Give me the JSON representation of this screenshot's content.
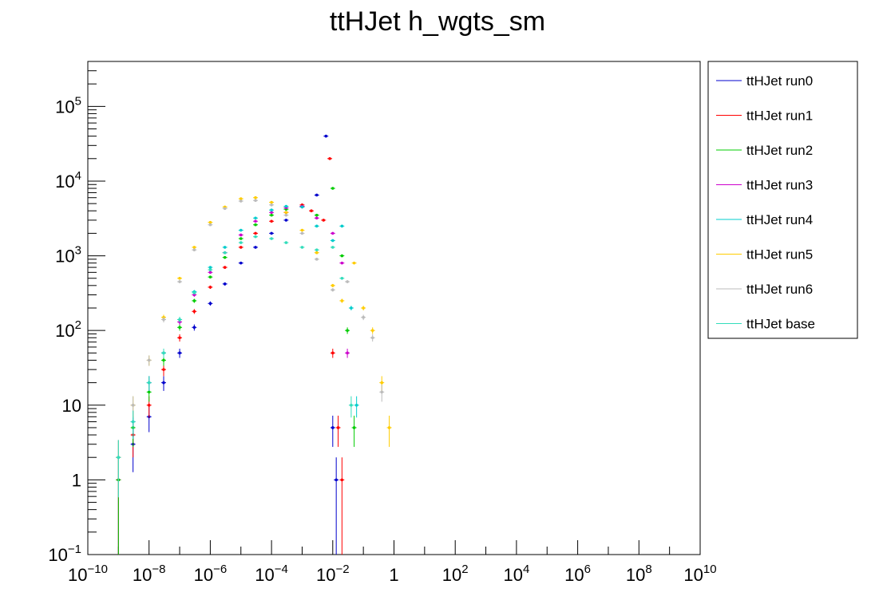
{
  "chart_data": {
    "type": "scatter",
    "title": "ttHJet h_wgts_sm",
    "xlabel": "",
    "ylabel": "",
    "x_scale": "log",
    "y_scale": "log",
    "xlim": [
      1e-10,
      10000000000.0
    ],
    "ylim": [
      0.1,
      400000
    ],
    "grid": false,
    "legend_position": "right",
    "x_tick_labels": [
      {
        "value": 1e-10,
        "base": "10",
        "exp": "−10"
      },
      {
        "value": 1e-08,
        "base": "10",
        "exp": "−8"
      },
      {
        "value": 1e-06,
        "base": "10",
        "exp": "−6"
      },
      {
        "value": 0.0001,
        "base": "10",
        "exp": "−4"
      },
      {
        "value": 0.01,
        "base": "10",
        "exp": "−2"
      },
      {
        "value": 1,
        "base": "1",
        "exp": ""
      },
      {
        "value": 100.0,
        "base": "10",
        "exp": "2"
      },
      {
        "value": 10000.0,
        "base": "10",
        "exp": "4"
      },
      {
        "value": 1000000.0,
        "base": "10",
        "exp": "6"
      },
      {
        "value": 100000000.0,
        "base": "10",
        "exp": "8"
      },
      {
        "value": 10000000000.0,
        "base": "10",
        "exp": "10"
      }
    ],
    "y_tick_labels": [
      {
        "value": 0.1,
        "base": "10",
        "exp": "−1"
      },
      {
        "value": 1,
        "base": "1",
        "exp": ""
      },
      {
        "value": 10,
        "base": "10",
        "exp": ""
      },
      {
        "value": 100,
        "base": "10",
        "exp": "2"
      },
      {
        "value": 1000,
        "base": "10",
        "exp": "3"
      },
      {
        "value": 10000,
        "base": "10",
        "exp": "4"
      },
      {
        "value": 100000,
        "base": "10",
        "exp": "5"
      }
    ],
    "series": [
      {
        "name": "ttHJet run0",
        "color": "#0000cc",
        "x": [
          1e-09,
          3e-09,
          1e-08,
          3e-08,
          1e-07,
          3e-07,
          1e-06,
          3e-06,
          1e-05,
          3e-05,
          0.0001,
          0.0003,
          0.001,
          0.003,
          0.006,
          0.01,
          0.013
        ],
        "y": [
          1,
          3,
          7,
          20,
          50,
          110,
          230,
          420,
          800,
          1300,
          2000,
          3000,
          4500,
          6500,
          40000,
          5,
          1
        ]
      },
      {
        "name": "ttHJet run1",
        "color": "#ff0000",
        "x": [
          1e-09,
          3e-09,
          1e-08,
          3e-08,
          1e-07,
          3e-07,
          1e-06,
          3e-06,
          1e-05,
          3e-05,
          0.0001,
          0.0003,
          0.001,
          0.002,
          0.005,
          0.008,
          0.01,
          0.015,
          0.02
        ],
        "y": [
          1,
          4,
          10,
          30,
          80,
          180,
          380,
          700,
          1300,
          2000,
          2900,
          3800,
          4800,
          4000,
          3000,
          20000,
          50,
          5,
          1
        ]
      },
      {
        "name": "ttHJet run2",
        "color": "#00cc00",
        "x": [
          1e-09,
          3e-09,
          1e-08,
          3e-08,
          1e-07,
          3e-07,
          1e-06,
          3e-06,
          1e-05,
          3e-05,
          0.0001,
          0.0003,
          0.001,
          0.003,
          0.01,
          0.02,
          0.03,
          0.05
        ],
        "y": [
          1,
          5,
          15,
          40,
          110,
          250,
          520,
          950,
          1700,
          2600,
          3500,
          4200,
          4600,
          3500,
          8000,
          1000,
          100,
          5
        ]
      },
      {
        "name": "ttHJet run3",
        "color": "#cc00cc",
        "x": [
          1e-09,
          3e-09,
          1e-08,
          3e-08,
          1e-07,
          3e-07,
          1e-06,
          3e-06,
          1e-05,
          3e-05,
          0.0001,
          0.0003,
          0.001,
          0.003,
          0.01,
          0.02,
          0.03
        ],
        "y": [
          2,
          6,
          20,
          50,
          130,
          300,
          600,
          1100,
          1900,
          2900,
          3800,
          4400,
          4600,
          3200,
          2000,
          800,
          50
        ]
      },
      {
        "name": "ttHJet run4",
        "color": "#00cccc",
        "x": [
          1e-09,
          3e-09,
          1e-08,
          3e-08,
          1e-07,
          3e-07,
          1e-06,
          3e-06,
          1e-05,
          3e-05,
          0.0001,
          0.0003,
          0.001,
          0.003,
          0.01,
          0.02,
          0.04,
          0.06
        ],
        "y": [
          2,
          6,
          20,
          50,
          140,
          330,
          700,
          1300,
          2200,
          3200,
          4100,
          4600,
          4500,
          2500,
          1600,
          2500,
          200,
          10
        ]
      },
      {
        "name": "ttHJet run5",
        "color": "#ffcc00",
        "x": [
          1e-09,
          3e-09,
          1e-08,
          3e-08,
          1e-07,
          3e-07,
          1e-06,
          3e-06,
          1e-05,
          3e-05,
          0.0001,
          0.0003,
          0.001,
          0.003,
          0.01,
          0.02,
          0.05,
          0.1,
          0.2,
          0.4,
          0.7
        ],
        "y": [
          2,
          10,
          40,
          150,
          500,
          1300,
          2800,
          4500,
          5800,
          6000,
          5200,
          3800,
          2200,
          1100,
          400,
          250,
          800,
          200,
          100,
          20,
          5
        ]
      },
      {
        "name": "ttHJet run6",
        "color": "#bbbbbb",
        "x": [
          1e-09,
          3e-09,
          1e-08,
          3e-08,
          1e-07,
          3e-07,
          1e-06,
          3e-06,
          1e-05,
          3e-05,
          0.0001,
          0.0003,
          0.001,
          0.003,
          0.01,
          0.03,
          0.1,
          0.2,
          0.4
        ],
        "y": [
          2,
          10,
          40,
          140,
          450,
          1200,
          2600,
          4300,
          5400,
          5500,
          4800,
          3500,
          2000,
          900,
          350,
          450,
          150,
          80,
          15
        ]
      },
      {
        "name": "ttHJet base",
        "color": "#33ddbb",
        "x": [
          1e-09,
          3e-09,
          1e-08,
          3e-08,
          1e-07,
          3e-07,
          1e-06,
          3e-06,
          1e-05,
          3e-05,
          0.0001,
          0.0003,
          0.001,
          0.003,
          0.01,
          0.02,
          0.04
        ],
        "y": [
          2,
          6,
          20,
          50,
          140,
          320,
          650,
          1100,
          1500,
          1800,
          1700,
          1500,
          1300,
          1200,
          1300,
          500,
          10
        ]
      }
    ]
  }
}
